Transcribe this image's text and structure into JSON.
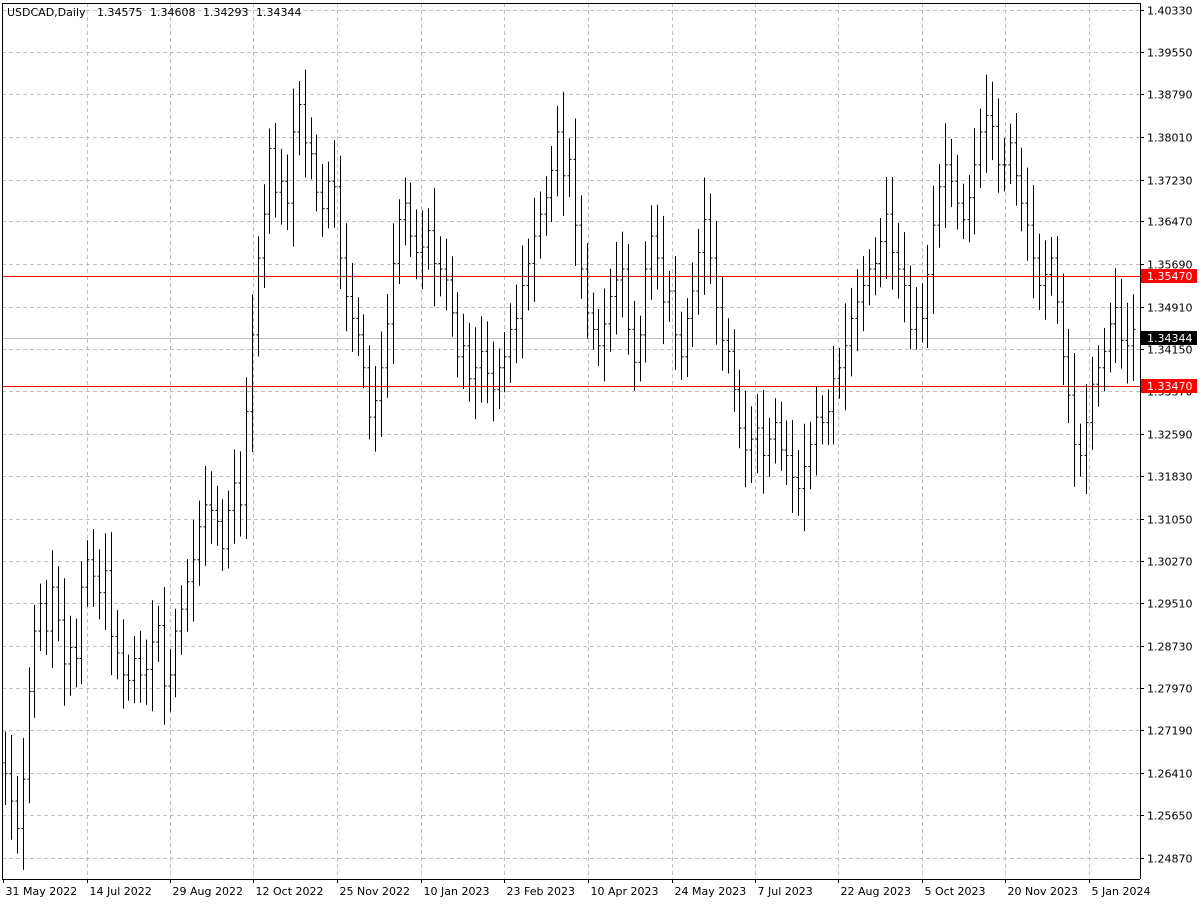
{
  "header": {
    "symbol": "USDCAD,Daily",
    "open": "1.34575",
    "high": "1.34608",
    "low": "1.34293",
    "close": "1.34344"
  },
  "colors": {
    "background": "#ffffff",
    "bars": "#000000",
    "grid": "#c0c0c0",
    "level_line": "#ff0000",
    "current_price_line": "#c0c0c0",
    "current_price_label_bg": "#000000"
  },
  "chart_data": {
    "type": "ohlc",
    "title": "USDCAD,Daily",
    "xlabel": "",
    "ylabel": "",
    "ylim": [
      1.2448,
      1.4045
    ],
    "grid": true,
    "y_ticks": [
      "1.40330",
      "1.39550",
      "1.38790",
      "1.38010",
      "1.37230",
      "1.36470",
      "1.35690",
      "1.34910",
      "1.34150",
      "1.33370",
      "1.32590",
      "1.31830",
      "1.31050",
      "1.30270",
      "1.29510",
      "1.28730",
      "1.27970",
      "1.27190",
      "1.26410",
      "1.25650",
      "1.24870"
    ],
    "x_ticks": [
      "31 May 2022",
      "14 Jul 2022",
      "29 Aug 2022",
      "12 Oct 2022",
      "25 Nov 2022",
      "10 Jan 2023",
      "23 Feb 2023",
      "10 Apr 2023",
      "24 May 2023",
      "7 Jul 2023",
      "22 Aug 2023",
      "5 Oct 2023",
      "20 Nov 2023",
      "5 Jan 2024"
    ],
    "levels": [
      {
        "value": 1.3547,
        "label": "1.35470",
        "color": "#ff0000"
      },
      {
        "value": 1.3347,
        "label": "1.33470",
        "color": "#ff0000"
      }
    ],
    "current_price": {
      "value": 1.34344,
      "label": "1.34344"
    },
    "series": [
      {
        "closes": [
          1.264,
          1.259,
          1.254,
          1.263,
          1.279,
          1.29,
          1.295,
          1.29,
          1.298,
          1.292,
          1.284,
          1.287,
          1.285,
          1.298,
          1.303,
          1.3,
          1.297,
          1.301,
          1.289,
          1.286,
          1.282,
          1.281,
          1.285,
          1.282,
          1.283,
          1.288,
          1.291,
          1.28,
          1.282,
          1.29,
          1.294,
          1.299,
          1.303,
          1.309,
          1.313,
          1.312,
          1.31,
          1.305,
          1.312,
          1.317,
          1.313,
          1.33,
          1.344,
          1.358,
          1.366,
          1.378,
          1.37,
          1.372,
          1.368,
          1.381,
          1.386,
          1.379,
          1.377,
          1.37,
          1.367,
          1.372,
          1.371,
          1.358,
          1.351,
          1.347,
          1.344,
          1.338,
          1.329,
          1.332,
          1.338,
          1.346,
          1.357,
          1.365,
          1.368,
          1.362,
          1.359,
          1.36,
          1.363,
          1.357,
          1.356,
          1.354,
          1.348,
          1.34,
          1.342,
          1.336,
          1.338,
          1.341,
          1.337,
          1.334,
          1.338,
          1.34,
          1.345,
          1.347,
          1.353,
          1.357,
          1.362,
          1.366,
          1.369,
          1.374,
          1.381,
          1.373,
          1.376,
          1.364,
          1.356,
          1.348,
          1.345,
          1.342,
          1.346,
          1.351,
          1.354,
          1.356,
          1.345,
          1.339,
          1.344,
          1.356,
          1.362,
          1.358,
          1.35,
          1.352,
          1.344,
          1.34,
          1.347,
          1.352,
          1.359,
          1.365,
          1.358,
          1.349,
          1.343,
          1.341,
          1.334,
          1.327,
          1.323,
          1.325,
          1.327,
          1.322,
          1.325,
          1.328,
          1.323,
          1.322,
          1.318,
          1.316,
          1.32,
          1.324,
          1.329,
          1.328,
          1.33,
          1.336,
          1.338,
          1.342,
          1.347,
          1.35,
          1.353,
          1.356,
          1.357,
          1.361,
          1.366,
          1.359,
          1.356,
          1.353,
          1.345,
          1.349,
          1.347,
          1.355,
          1.364,
          1.371,
          1.375,
          1.372,
          1.368,
          1.365,
          1.369,
          1.375,
          1.381,
          1.384,
          1.382,
          1.375,
          1.375,
          1.379,
          1.373,
          1.368,
          1.364,
          1.358,
          1.353,
          1.355,
          1.358,
          1.35,
          1.34,
          1.333,
          1.324,
          1.322,
          1.328,
          1.335,
          1.338,
          1.341,
          1.346,
          1.349,
          1.343,
          1.342,
          1.345
        ]
      }
    ]
  }
}
